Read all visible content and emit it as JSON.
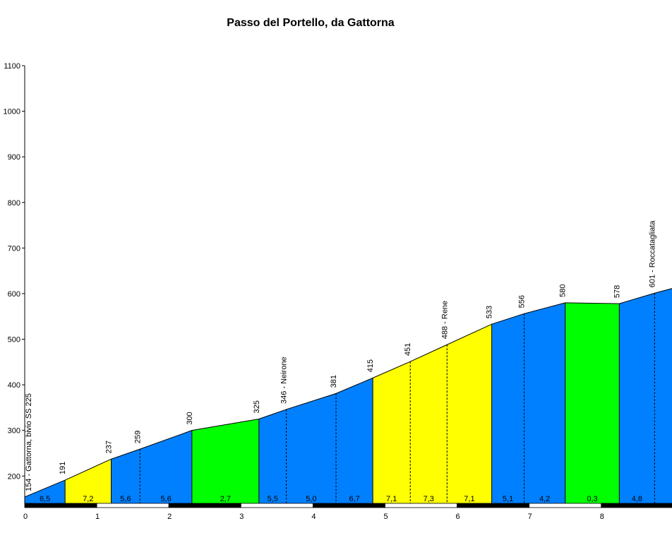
{
  "chart_data": {
    "type": "area",
    "title": "Passo del Portello, da Gattorna",
    "xlabel": "",
    "ylabel": "",
    "xlim": [
      0,
      9
    ],
    "ylim": [
      140,
      1100
    ],
    "x_ticks": [
      "0",
      "1",
      "2",
      "3",
      "4",
      "5",
      "6",
      "7",
      "8"
    ],
    "y_ticks": [
      "200",
      "300",
      "400",
      "500",
      "600",
      "700",
      "800",
      "900",
      "1000",
      "1100"
    ],
    "profile": [
      {
        "km": 0.0,
        "alt": 154
      },
      {
        "km": 0.56,
        "alt": 191
      },
      {
        "km": 1.2,
        "alt": 237
      },
      {
        "km": 1.6,
        "alt": 259
      },
      {
        "km": 2.32,
        "alt": 300
      },
      {
        "km": 3.25,
        "alt": 325
      },
      {
        "km": 3.63,
        "alt": 346
      },
      {
        "km": 4.32,
        "alt": 381
      },
      {
        "km": 4.83,
        "alt": 415
      },
      {
        "km": 5.35,
        "alt": 451
      },
      {
        "km": 5.86,
        "alt": 488
      },
      {
        "km": 6.48,
        "alt": 533
      },
      {
        "km": 6.93,
        "alt": 556
      },
      {
        "km": 7.5,
        "alt": 580
      },
      {
        "km": 8.25,
        "alt": 578
      },
      {
        "km": 8.74,
        "alt": 601
      },
      {
        "km": 9.0,
        "alt": 612
      }
    ],
    "points": [
      {
        "km": 0.0,
        "label": "154 - Gattorna, bivio  SS 225"
      },
      {
        "km": 0.56,
        "label": "191"
      },
      {
        "km": 1.2,
        "label": "237"
      },
      {
        "km": 1.6,
        "label": "259"
      },
      {
        "km": 2.32,
        "label": "300"
      },
      {
        "km": 3.25,
        "label": "325"
      },
      {
        "km": 3.63,
        "label": "346 - Neirone"
      },
      {
        "km": 4.32,
        "label": "381"
      },
      {
        "km": 4.83,
        "label": "415"
      },
      {
        "km": 5.35,
        "label": "451"
      },
      {
        "km": 5.86,
        "label": "488 - Rene"
      },
      {
        "km": 6.48,
        "label": "533"
      },
      {
        "km": 6.93,
        "label": "556"
      },
      {
        "km": 7.5,
        "label": "580"
      },
      {
        "km": 8.25,
        "label": "578"
      },
      {
        "km": 8.74,
        "label": "601 - Roccatagliata"
      }
    ],
    "segments": [
      {
        "from": 0.0,
        "to": 0.56,
        "gradient": "6,5",
        "color": "#0080ff"
      },
      {
        "from": 0.56,
        "to": 1.2,
        "gradient": "7,2",
        "color": "#ffff00"
      },
      {
        "from": 1.2,
        "to": 1.6,
        "gradient": "5,6",
        "color": "#0080ff"
      },
      {
        "from": 1.6,
        "to": 2.32,
        "gradient": "5,6",
        "color": "#0080ff"
      },
      {
        "from": 2.32,
        "to": 3.25,
        "gradient": "2,7",
        "color": "#00ff00"
      },
      {
        "from": 3.25,
        "to": 3.63,
        "gradient": "5,5",
        "color": "#0080ff"
      },
      {
        "from": 3.63,
        "to": 4.32,
        "gradient": "5,0",
        "color": "#0080ff"
      },
      {
        "from": 4.32,
        "to": 4.83,
        "gradient": "6,7",
        "color": "#0080ff"
      },
      {
        "from": 4.83,
        "to": 5.35,
        "gradient": "7,1",
        "color": "#ffff00"
      },
      {
        "from": 5.35,
        "to": 5.86,
        "gradient": "7,3",
        "color": "#ffff00"
      },
      {
        "from": 5.86,
        "to": 6.48,
        "gradient": "7,1",
        "color": "#ffff00"
      },
      {
        "from": 6.48,
        "to": 6.93,
        "gradient": "5,1",
        "color": "#0080ff"
      },
      {
        "from": 6.93,
        "to": 7.5,
        "gradient": "4,2",
        "color": "#0080ff"
      },
      {
        "from": 7.5,
        "to": 8.25,
        "gradient": "0,3",
        "color": "#00ff00"
      },
      {
        "from": 8.25,
        "to": 8.74,
        "gradient": "4,8",
        "color": "#0080ff"
      },
      {
        "from": 8.74,
        "to": 9.0,
        "gradient": "",
        "color": "#0080ff"
      }
    ]
  }
}
